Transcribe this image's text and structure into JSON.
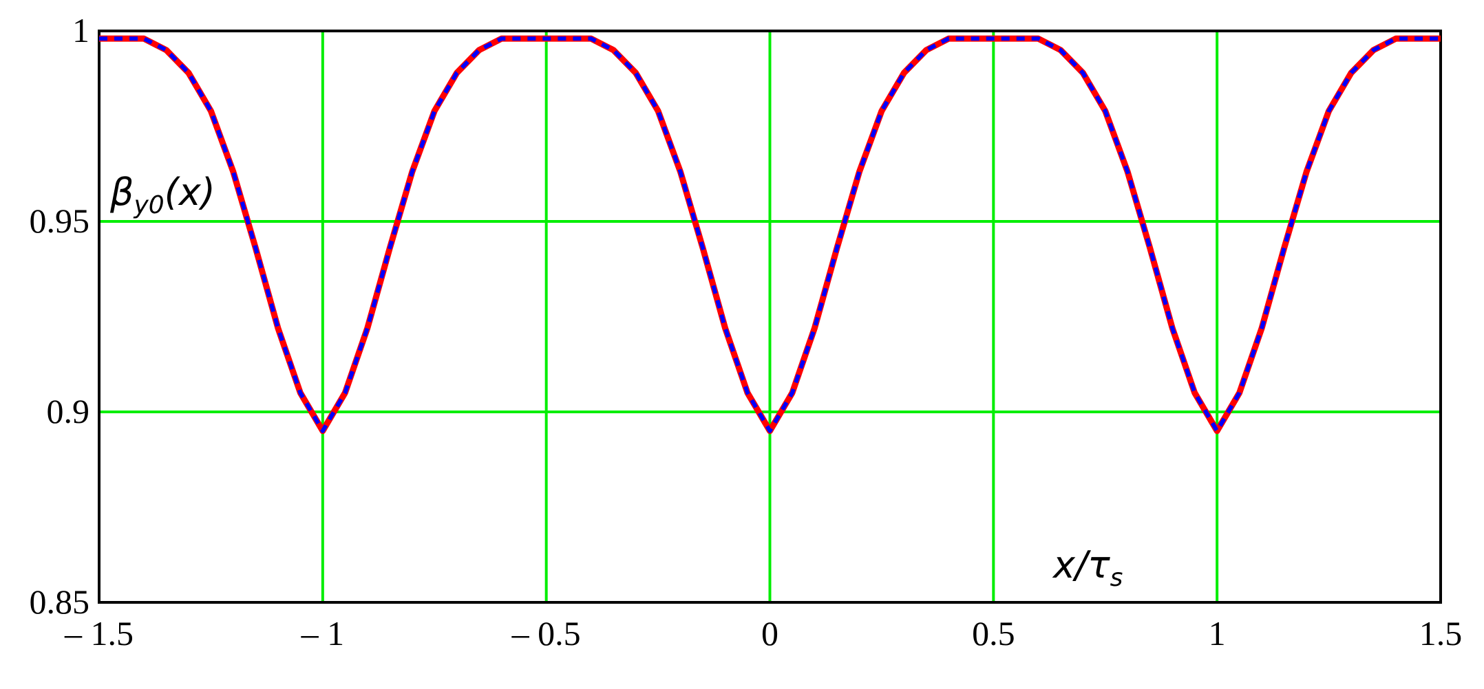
{
  "chart_data": {
    "type": "line",
    "ylabel": {
      "symbol": "β",
      "subscript": "y0",
      "argument": "(x)"
    },
    "xlabel": {
      "variable": "x/",
      "symbol": "τ",
      "subscript": "s"
    },
    "x": [
      -1.5,
      -1.45,
      -1.4,
      -1.35,
      -1.3,
      -1.25,
      -1.2,
      -1.15,
      -1.1,
      -1.05,
      -1.0,
      -0.95,
      -0.9,
      -0.85,
      -0.8,
      -0.75,
      -0.7,
      -0.65,
      -0.6,
      -0.55,
      -0.5,
      -0.45,
      -0.4,
      -0.35,
      -0.3,
      -0.25,
      -0.2,
      -0.15,
      -0.1,
      -0.05,
      0,
      0.05,
      0.1,
      0.15,
      0.2,
      0.25,
      0.3,
      0.35,
      0.4,
      0.45,
      0.5,
      0.55,
      0.6,
      0.65,
      0.7,
      0.75,
      0.8,
      0.85,
      0.9,
      0.95,
      1.0,
      1.05,
      1.1,
      1.15,
      1.2,
      1.25,
      1.3,
      1.35,
      1.4,
      1.45,
      1.5
    ],
    "series": [
      {
        "color": "#ff0000",
        "style": "solid",
        "values": [
          0.998,
          0.998,
          0.998,
          0.995,
          0.989,
          0.979,
          0.963,
          0.943,
          0.922,
          0.905,
          0.895,
          0.905,
          0.922,
          0.943,
          0.963,
          0.979,
          0.989,
          0.995,
          0.998,
          0.998,
          0.998,
          0.998,
          0.998,
          0.995,
          0.989,
          0.979,
          0.963,
          0.943,
          0.922,
          0.905,
          0.895,
          0.905,
          0.922,
          0.943,
          0.963,
          0.979,
          0.989,
          0.995,
          0.998,
          0.998,
          0.998,
          0.998,
          0.998,
          0.995,
          0.989,
          0.979,
          0.963,
          0.943,
          0.922,
          0.905,
          0.895,
          0.905,
          0.922,
          0.943,
          0.963,
          0.979,
          0.989,
          0.995,
          0.998,
          0.998,
          0.998
        ]
      },
      {
        "color": "#0000ff",
        "style": "dashed",
        "values": [
          0.998,
          0.998,
          0.998,
          0.995,
          0.989,
          0.979,
          0.963,
          0.943,
          0.922,
          0.905,
          0.895,
          0.905,
          0.922,
          0.943,
          0.963,
          0.979,
          0.989,
          0.995,
          0.998,
          0.998,
          0.998,
          0.998,
          0.998,
          0.995,
          0.989,
          0.979,
          0.963,
          0.943,
          0.922,
          0.905,
          0.895,
          0.905,
          0.922,
          0.943,
          0.963,
          0.979,
          0.989,
          0.995,
          0.998,
          0.998,
          0.998,
          0.998,
          0.998,
          0.995,
          0.989,
          0.979,
          0.963,
          0.943,
          0.922,
          0.905,
          0.895,
          0.905,
          0.922,
          0.943,
          0.963,
          0.979,
          0.989,
          0.995,
          0.998,
          0.998,
          0.998
        ]
      }
    ],
    "xlim": [
      -1.5,
      1.5
    ],
    "xticks": [
      {
        "value": -1.5,
        "label": "– 1.5"
      },
      {
        "value": -1,
        "label": "– 1"
      },
      {
        "value": -0.5,
        "label": "– 0.5"
      },
      0,
      0.5,
      1,
      1.5
    ],
    "ylim": [
      0.85,
      1
    ],
    "yticks": [
      0.85,
      0.9,
      0.95,
      1
    ],
    "grid": true,
    "grid_color": "#00ee00"
  }
}
